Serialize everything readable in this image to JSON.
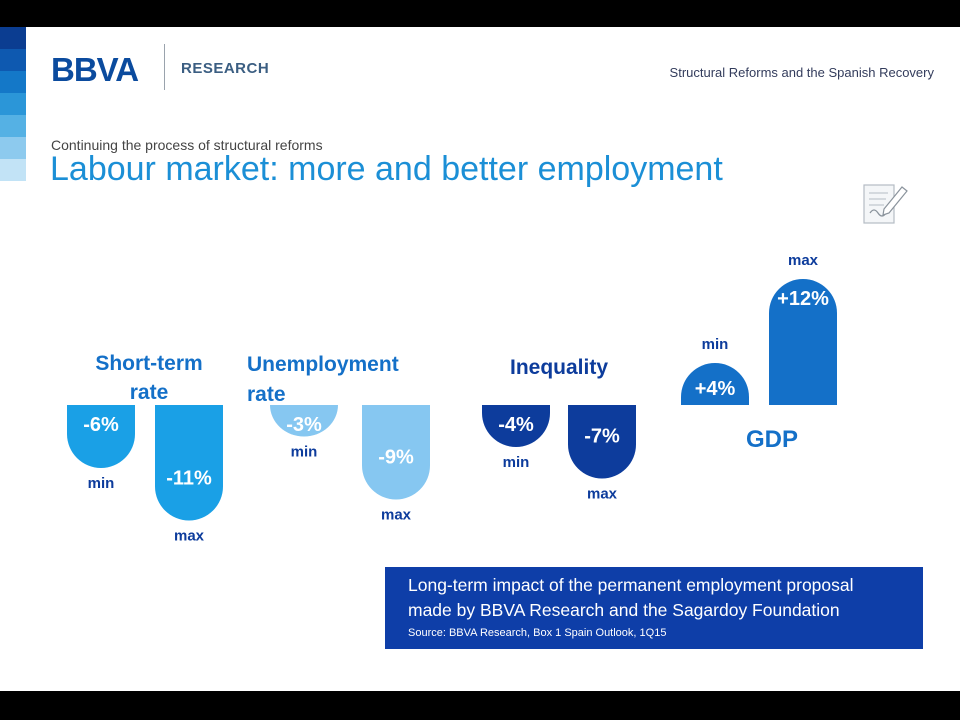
{
  "header": {
    "logo_text": "BBVA",
    "logo_subtext": "RESEARCH",
    "deck_title": "Structural Reforms and the Spanish Recovery"
  },
  "slide": {
    "subtitle": "Continuing the process of structural reforms",
    "title": "Labour market: more and better employment"
  },
  "colors": {
    "stripes": [
      "#0b3d91",
      "#0e59b0",
      "#1478c8",
      "#2b96d8",
      "#55b1e4",
      "#8dcaee",
      "#c2e3f6"
    ],
    "short_term": "#1aa0e6",
    "unemployment": "#86c7f1",
    "inequality": "#0d3c9c",
    "gdp": "#1470c8",
    "label_dark": "#0d3c9c",
    "label_mid": "#1470c8"
  },
  "chart_data": {
    "type": "bar",
    "unit": "%",
    "groups": [
      {
        "title_lines": [
          "Short-term",
          "rate"
        ],
        "min": {
          "label": "min",
          "value": -6,
          "text": "-6%"
        },
        "max": {
          "label": "max",
          "value": -11,
          "text": "-11%"
        }
      },
      {
        "title_lines": [
          "Unemployment",
          "rate"
        ],
        "min": {
          "label": "min",
          "value": -3,
          "text": "-3%"
        },
        "max": {
          "label": "max",
          "value": -9,
          "text": "-9%"
        }
      },
      {
        "title_lines": [
          "Inequality"
        ],
        "min": {
          "label": "min",
          "value": -4,
          "text": "-4%"
        },
        "max": {
          "label": "max",
          "value": -7,
          "text": "-7%"
        }
      },
      {
        "title_lines": [
          "GDP"
        ],
        "min": {
          "label": "min",
          "value": 4,
          "text": "+4%"
        },
        "max": {
          "label": "max",
          "value": 12,
          "text": "+12%"
        }
      }
    ]
  },
  "info_box": {
    "line1": "Long-term impact of the permanent employment proposal",
    "line2": "made by BBVA Research and the Sagardoy Foundation",
    "source": "Source: BBVA Research, Box 1 Spain Outlook, 1Q15"
  }
}
